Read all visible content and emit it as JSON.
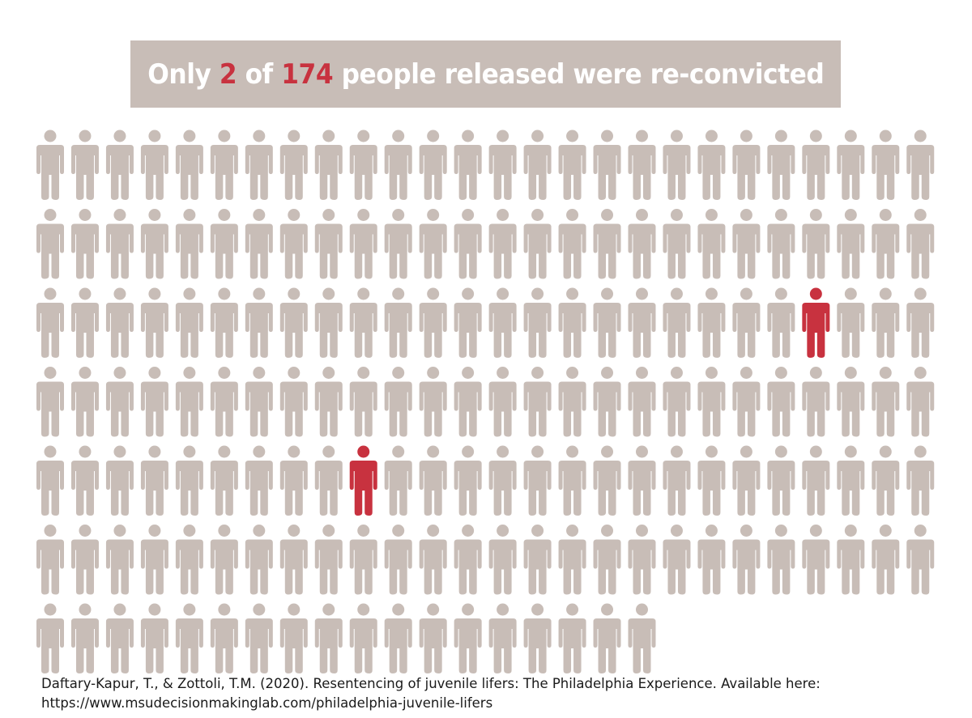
{
  "title": {
    "part1": "Only ",
    "num1": "2",
    "part2": " of ",
    "num2": "174",
    "part3": " people released were re-convicted"
  },
  "chart_data": {
    "type": "pictogram",
    "total": 174,
    "highlighted": 2,
    "columns": 26,
    "highlighted_positions": [
      {
        "row": 3,
        "col": 23
      },
      {
        "row": 5,
        "col": 10
      }
    ],
    "colors": {
      "default": "#c8bdb7",
      "highlight": "#c8323f"
    }
  },
  "citation": {
    "line1": "Daftary-Kapur, T., & Zottoli, T.M. (2020). Resentencing of juvenile lifers: The Philadelphia Experience. Available here:",
    "line2": "https://www.msudecisionmakinglab.com/philadelphia-juvenile-lifers"
  }
}
